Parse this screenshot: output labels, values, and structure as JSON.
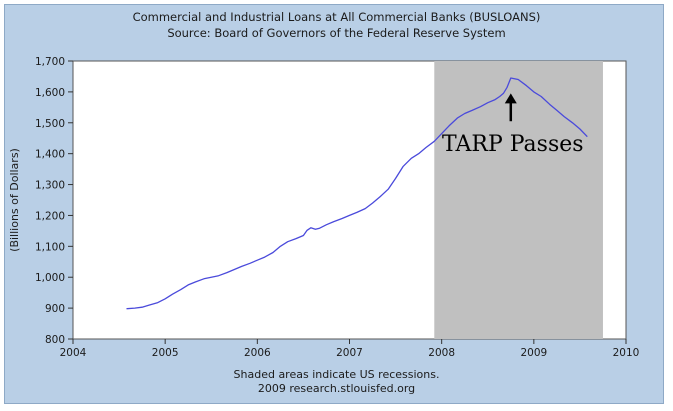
{
  "chart_data": {
    "type": "line",
    "title": "Commercial and Industrial Loans at All Commercial Banks (BUSLOANS)",
    "subtitle": "Source: Board of Governors of the Federal Reserve System",
    "ylabel": "(Billions of Dollars)",
    "xlabel": "",
    "xlim": [
      2004,
      2010
    ],
    "ylim": [
      800,
      1700
    ],
    "x_ticks": [
      2004,
      2005,
      2006,
      2007,
      2008,
      2009,
      2010
    ],
    "x_tick_labels": [
      "2004",
      "2005",
      "2006",
      "2007",
      "2008",
      "2009",
      "2010"
    ],
    "y_ticks": [
      800,
      900,
      1000,
      1100,
      1200,
      1300,
      1400,
      1500,
      1600,
      1700
    ],
    "y_tick_labels": [
      "800",
      "900",
      "1,000",
      "1,100",
      "1,200",
      "1,300",
      "1,400",
      "1,500",
      "1,600",
      "1,700"
    ],
    "grid": false,
    "legend": "none",
    "line_color": "#4a4adb",
    "recession_color": "#c0c0c0",
    "recession_shading": [
      {
        "start": 2007.92,
        "end": 2009.75
      }
    ],
    "annotation": {
      "text": "TARP Passes",
      "arrow_x": 2008.75,
      "arrow_tip_y": 1595,
      "arrow_tail_y": 1505
    },
    "footnote": [
      "Shaded areas indicate US recessions.",
      "2009 research.stlouisfed.org"
    ],
    "series": [
      {
        "x": [
          2004.58,
          2004.67,
          2004.75,
          2004.83,
          2004.92,
          2005.0,
          2005.08,
          2005.17,
          2005.25,
          2005.33,
          2005.42,
          2005.5,
          2005.58,
          2005.67,
          2005.75,
          2005.83,
          2005.92,
          2006.0,
          2006.08,
          2006.17,
          2006.25,
          2006.33,
          2006.42,
          2006.5,
          2006.54,
          2006.58,
          2006.63,
          2006.67,
          2006.75,
          2006.83,
          2006.92,
          2007.0,
          2007.08,
          2007.17,
          2007.25,
          2007.33,
          2007.42,
          2007.5,
          2007.58,
          2007.67,
          2007.75,
          2007.83,
          2007.92,
          2008.0,
          2008.08,
          2008.17,
          2008.25,
          2008.33,
          2008.42,
          2008.5,
          2008.58,
          2008.63,
          2008.67,
          2008.71,
          2008.75,
          2008.83,
          2008.92,
          2009.0,
          2009.08,
          2009.17,
          2009.25,
          2009.33,
          2009.42,
          2009.5,
          2009.58
        ],
        "y": [
          898,
          900,
          903,
          910,
          918,
          930,
          945,
          960,
          975,
          985,
          995,
          1000,
          1005,
          1015,
          1025,
          1035,
          1045,
          1055,
          1065,
          1080,
          1100,
          1115,
          1125,
          1135,
          1152,
          1160,
          1155,
          1158,
          1170,
          1180,
          1190,
          1200,
          1210,
          1222,
          1240,
          1260,
          1285,
          1320,
          1358,
          1385,
          1400,
          1420,
          1440,
          1465,
          1490,
          1515,
          1530,
          1540,
          1552,
          1565,
          1575,
          1585,
          1595,
          1615,
          1645,
          1640,
          1620,
          1600,
          1585,
          1560,
          1540,
          1520,
          1500,
          1480,
          1455
        ]
      }
    ]
  }
}
